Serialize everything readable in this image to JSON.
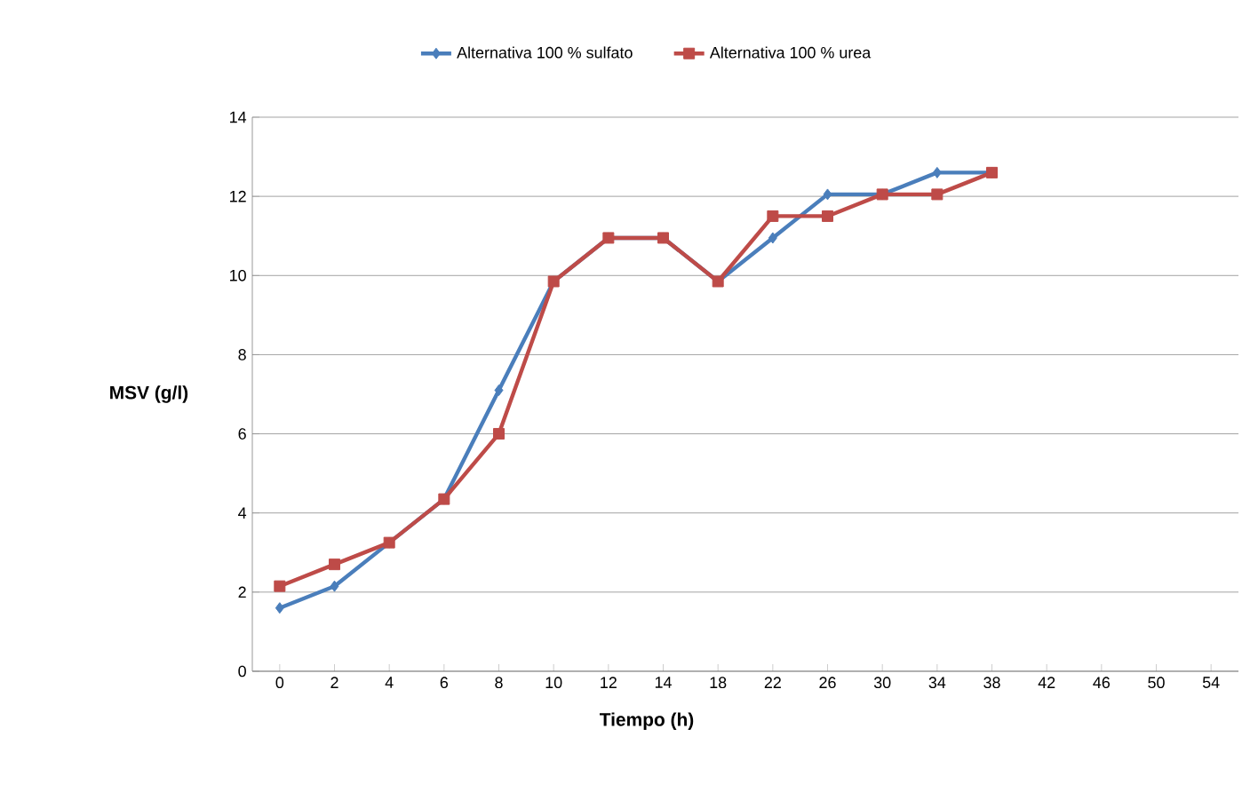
{
  "chart_data": {
    "type": "line",
    "xlabel": "Tiempo (h)",
    "ylabel": "MSV (g/l)",
    "categories": [
      "0",
      "2",
      "4",
      "6",
      "8",
      "10",
      "12",
      "14",
      "18",
      "22",
      "26",
      "30",
      "34",
      "38",
      "42",
      "46",
      "50",
      "54"
    ],
    "series": [
      {
        "name": "Alternativa 100 % sulfato",
        "color": "#4a7ebb",
        "marker": "diamond",
        "values": [
          1.6,
          2.15,
          3.25,
          4.35,
          7.1,
          9.85,
          10.95,
          10.95,
          9.85,
          10.95,
          12.05,
          12.05,
          12.6,
          12.6,
          null,
          null,
          null,
          null
        ]
      },
      {
        "name": "Alternativa 100 % urea",
        "color": "#be4b48",
        "marker": "square",
        "values": [
          2.15,
          2.7,
          3.25,
          4.35,
          6.0,
          9.85,
          10.95,
          10.95,
          9.85,
          11.5,
          11.5,
          12.05,
          12.05,
          12.6,
          null,
          null,
          null,
          null
        ]
      }
    ],
    "ylim": [
      0,
      14
    ],
    "yticks": [
      0,
      2,
      4,
      6,
      8,
      10,
      12,
      14
    ],
    "grid": "y",
    "legend": "top",
    "line_style": "solid"
  }
}
